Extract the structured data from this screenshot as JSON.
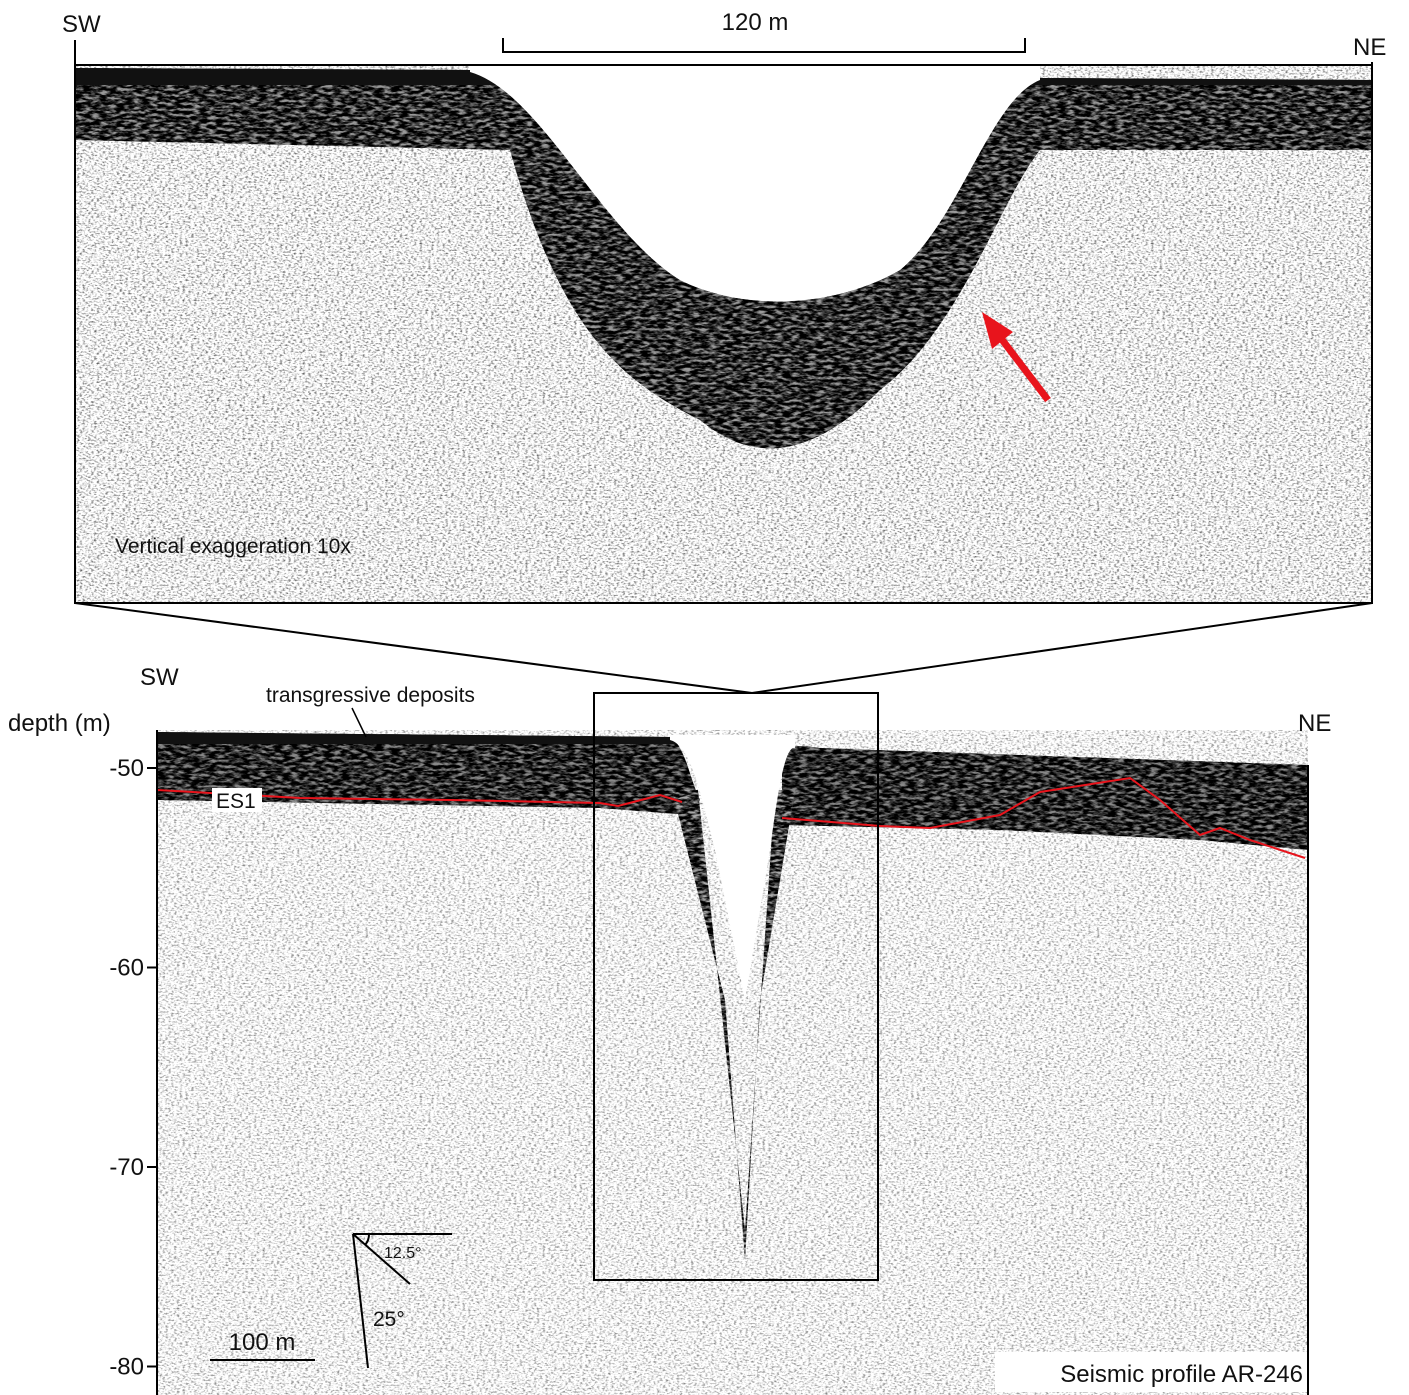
{
  "top_panel": {
    "left_label": "SW",
    "right_label": "NE",
    "scale_bar": "120 m",
    "note": "Vertical exaggeration 10x"
  },
  "bottom_panel": {
    "left_label": "SW",
    "right_label": "NE",
    "axis_label": "depth (m)",
    "depth_ticks": [
      -50,
      -60,
      -70,
      -80
    ],
    "annotations": {
      "deposits": "transgressive deposits",
      "surface": "ES1",
      "angle_small": "12.5°",
      "angle_large": "25°",
      "scale_bar": "100 m",
      "caption": "Seismic profile AR-246"
    }
  }
}
